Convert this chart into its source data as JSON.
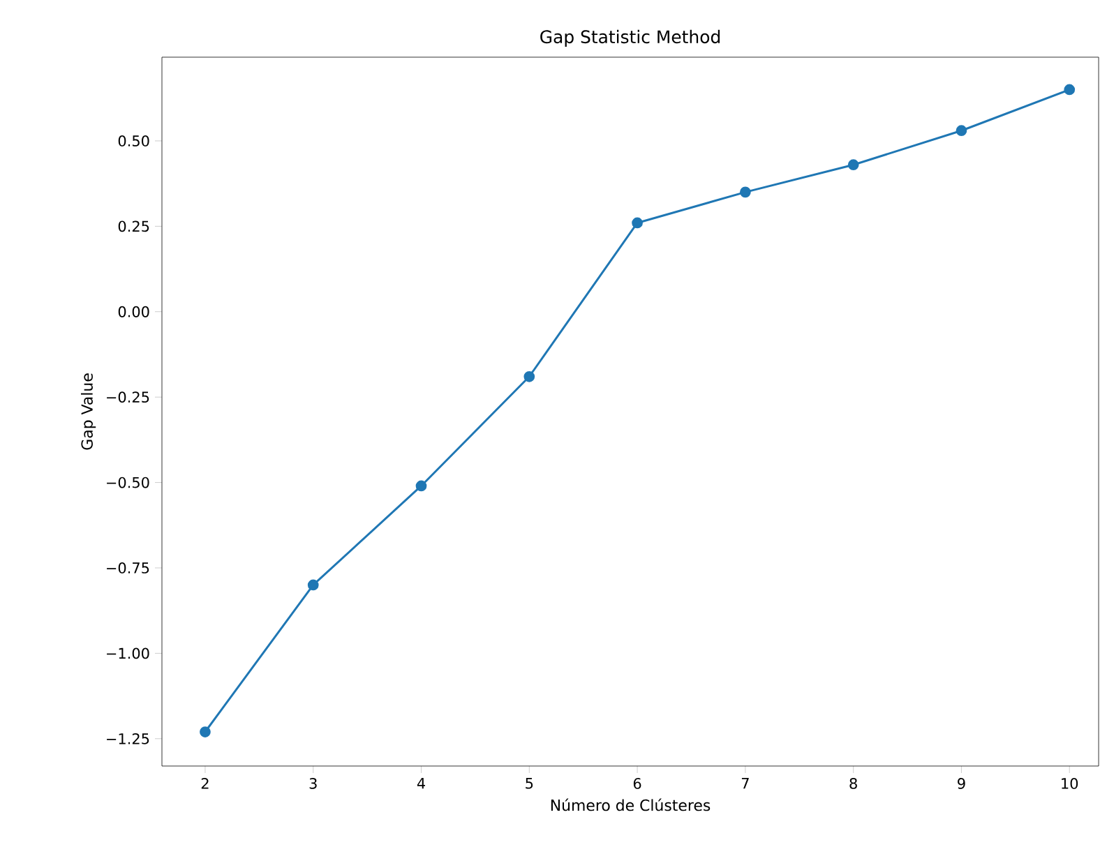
{
  "chart_data": {
    "type": "line",
    "title": "Gap Statistic Method",
    "xlabel": "Número de Clústeres",
    "ylabel": "Gap Value",
    "x": [
      2,
      3,
      4,
      5,
      6,
      7,
      8,
      9,
      10
    ],
    "values": [
      -1.23,
      -0.8,
      -0.51,
      -0.19,
      0.26,
      0.35,
      0.43,
      0.53,
      0.65
    ],
    "color": "#1f77b4",
    "marker": "circle",
    "line_style": "solid",
    "xlim": [
      1.6,
      10.27
    ],
    "ylim": [
      -1.33,
      0.745
    ],
    "xticks": [
      2,
      3,
      4,
      5,
      6,
      7,
      8,
      9,
      10
    ],
    "yticks": [
      {
        "value": -1.25,
        "label": "−1.25"
      },
      {
        "value": -1.0,
        "label": "−1.00"
      },
      {
        "value": -0.75,
        "label": "−0.75"
      },
      {
        "value": -0.5,
        "label": "−0.50"
      },
      {
        "value": -0.25,
        "label": "−0.25"
      },
      {
        "value": 0.0,
        "label": "0.00"
      },
      {
        "value": 0.25,
        "label": "0.25"
      },
      {
        "value": 0.5,
        "label": "0.50"
      }
    ]
  }
}
